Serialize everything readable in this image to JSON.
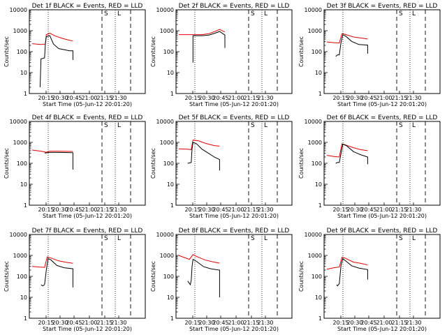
{
  "chart_data": {
    "type": "line",
    "ylabel": "Counts/sec",
    "y_scale": "log",
    "ylim": [
      1,
      10000
    ],
    "y_ticks": [
      "1",
      "10",
      "100",
      "1000",
      "10000"
    ],
    "x_ticks": [
      "20:15",
      "20:30",
      "20:45",
      "21:00",
      "21:15",
      "21:30"
    ],
    "xlabel": "Start Time (05-Jun-12 20:01:20)",
    "line_colors": {
      "events": "#000000",
      "lld": "#e00000"
    },
    "markers": {
      "s_label": "S",
      "l_label": "L"
    },
    "panels": [
      {
        "title": "Det 1f BLACK = Events, RED = LLD",
        "red": [
          [
            20.0,
            240
          ],
          [
            20.5,
            220
          ],
          [
            20.75,
            230
          ],
          [
            20.8,
            650
          ],
          [
            21.0,
            760
          ],
          [
            21.3,
            560
          ],
          [
            21.7,
            430
          ],
          [
            22.0,
            370
          ],
          [
            22.3,
            320
          ]
        ],
        "black": [
          [
            20.45,
            2
          ],
          [
            20.5,
            45
          ],
          [
            20.7,
            50
          ],
          [
            20.75,
            250
          ],
          [
            20.8,
            520
          ],
          [
            21.0,
            580
          ],
          [
            21.2,
            230
          ],
          [
            21.5,
            140
          ],
          [
            21.8,
            125
          ],
          [
            22.1,
            110
          ],
          [
            22.3,
            110
          ],
          [
            22.3,
            40
          ]
        ]
      },
      {
        "title": "Det 2f BLACK = Events, RED = LLD",
        "red": [
          [
            20.0,
            650
          ],
          [
            20.8,
            650
          ],
          [
            21.3,
            650
          ],
          [
            21.7,
            720
          ],
          [
            22.0,
            900
          ],
          [
            22.3,
            1150
          ],
          [
            22.6,
            870
          ]
        ],
        "black": [
          [
            20.8,
            30
          ],
          [
            20.8,
            580
          ],
          [
            21.3,
            580
          ],
          [
            21.7,
            620
          ],
          [
            22.0,
            740
          ],
          [
            22.3,
            920
          ],
          [
            22.6,
            620
          ],
          [
            22.6,
            150
          ]
        ]
      },
      {
        "title": "Det 3f BLACK = Events, RED = LLD",
        "red": [
          [
            20.0,
            290
          ],
          [
            20.4,
            270
          ],
          [
            20.7,
            260
          ],
          [
            20.85,
            720
          ],
          [
            21.0,
            680
          ],
          [
            21.5,
            500
          ],
          [
            21.9,
            450
          ],
          [
            22.3,
            400
          ]
        ],
        "black": [
          [
            20.5,
            60
          ],
          [
            20.6,
            70
          ],
          [
            20.7,
            70
          ],
          [
            20.8,
            280
          ],
          [
            20.9,
            640
          ],
          [
            21.05,
            560
          ],
          [
            21.4,
            310
          ],
          [
            21.8,
            220
          ],
          [
            22.3,
            205
          ],
          [
            22.3,
            80
          ]
        ]
      },
      {
        "title": "Det 4f BLACK = Events, RED = LLD",
        "red": [
          [
            20.0,
            430
          ],
          [
            20.5,
            380
          ],
          [
            20.8,
            340
          ],
          [
            21.0,
            380
          ],
          [
            21.5,
            380
          ],
          [
            22.3,
            370
          ]
        ],
        "black": [
          [
            20.7,
            310
          ],
          [
            21.0,
            330
          ],
          [
            21.5,
            330
          ],
          [
            22.0,
            325
          ],
          [
            22.3,
            320
          ],
          [
            22.3,
            50
          ]
        ]
      },
      {
        "title": "Det 5f BLACK = Events, RED = LLD",
        "red": [
          [
            20.0,
            490
          ],
          [
            20.5,
            470
          ],
          [
            20.7,
            450
          ],
          [
            20.8,
            1300
          ],
          [
            21.1,
            1200
          ],
          [
            21.5,
            900
          ],
          [
            22.0,
            700
          ],
          [
            22.3,
            660
          ]
        ],
        "black": [
          [
            20.5,
            100
          ],
          [
            20.7,
            110
          ],
          [
            20.75,
            500
          ],
          [
            20.8,
            1000
          ],
          [
            21.0,
            860
          ],
          [
            21.3,
            480
          ],
          [
            21.7,
            290
          ],
          [
            22.0,
            200
          ],
          [
            22.3,
            150
          ],
          [
            22.3,
            45
          ]
        ]
      },
      {
        "title": "Det 6f BLACK = Events, RED = LLD",
        "red": [
          [
            20.0,
            240
          ],
          [
            20.4,
            210
          ],
          [
            20.7,
            200
          ],
          [
            20.85,
            850
          ],
          [
            21.0,
            780
          ],
          [
            21.5,
            560
          ],
          [
            21.9,
            450
          ],
          [
            22.3,
            400
          ]
        ],
        "black": [
          [
            20.5,
            100
          ],
          [
            20.6,
            110
          ],
          [
            20.7,
            110
          ],
          [
            20.8,
            300
          ],
          [
            20.9,
            820
          ],
          [
            21.1,
            700
          ],
          [
            21.5,
            360
          ],
          [
            21.9,
            260
          ],
          [
            22.3,
            200
          ],
          [
            22.3,
            90
          ]
        ]
      },
      {
        "title": "Det 7f BLACK = Events, RED = LLD",
        "red": [
          [
            20.0,
            300
          ],
          [
            20.4,
            280
          ],
          [
            20.7,
            270
          ],
          [
            20.85,
            850
          ],
          [
            21.0,
            780
          ],
          [
            21.5,
            550
          ],
          [
            21.9,
            470
          ],
          [
            22.3,
            420
          ]
        ],
        "black": [
          [
            20.5,
            40
          ],
          [
            20.6,
            35
          ],
          [
            20.7,
            40
          ],
          [
            20.8,
            200
          ],
          [
            20.9,
            700
          ],
          [
            21.05,
            620
          ],
          [
            21.4,
            330
          ],
          [
            21.8,
            260
          ],
          [
            22.3,
            230
          ],
          [
            22.3,
            30
          ]
        ]
      },
      {
        "title": "Det 8f BLACK = Events, RED = LLD",
        "red": [
          [
            20.0,
            1000
          ],
          [
            20.3,
            800
          ],
          [
            20.6,
            650
          ],
          [
            20.8,
            1100
          ],
          [
            21.0,
            900
          ],
          [
            21.5,
            600
          ],
          [
            22.0,
            480
          ],
          [
            22.3,
            430
          ]
        ],
        "black": [
          [
            20.5,
            60
          ],
          [
            20.65,
            40
          ],
          [
            20.7,
            65
          ],
          [
            20.75,
            300
          ],
          [
            20.8,
            650
          ],
          [
            21.0,
            520
          ],
          [
            21.4,
            290
          ],
          [
            21.8,
            230
          ],
          [
            22.3,
            200
          ],
          [
            22.3,
            10
          ]
        ]
      },
      {
        "title": "Det 9f BLACK = Events, RED = LLD",
        "red": [
          [
            20.0,
            220
          ],
          [
            20.4,
            260
          ],
          [
            20.7,
            280
          ],
          [
            20.85,
            820
          ],
          [
            21.0,
            760
          ],
          [
            21.5,
            480
          ],
          [
            21.9,
            420
          ],
          [
            22.3,
            350
          ]
        ],
        "black": [
          [
            20.55,
            40
          ],
          [
            20.6,
            35
          ],
          [
            20.7,
            45
          ],
          [
            20.8,
            350
          ],
          [
            20.9,
            700
          ],
          [
            21.05,
            560
          ],
          [
            21.4,
            320
          ],
          [
            21.8,
            250
          ],
          [
            22.3,
            210
          ],
          [
            22.3,
            70
          ]
        ]
      }
    ]
  }
}
